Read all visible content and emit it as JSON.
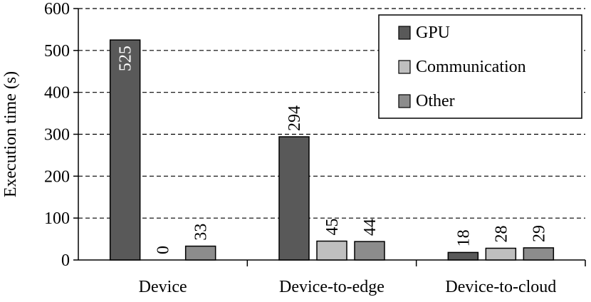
{
  "chart_data": {
    "type": "bar",
    "title": "",
    "xlabel": "",
    "ylabel": "Execution time (s)",
    "ylim": [
      0,
      600
    ],
    "yticks": [
      0,
      100,
      200,
      300,
      400,
      500,
      600
    ],
    "grid": "horizontal dashed",
    "legend_position": "top-right",
    "categories": [
      "Device",
      "Device-to-edge",
      "Device-to-cloud"
    ],
    "series": [
      {
        "name": "GPU",
        "color": "#595959",
        "values": [
          525,
          294,
          18
        ]
      },
      {
        "name": "Communication",
        "color": "#bfbfbf",
        "values": [
          0,
          45,
          28
        ]
      },
      {
        "name": "Other",
        "color": "#8c8c8c",
        "values": [
          33,
          44,
          29
        ]
      }
    ],
    "data_labels": [
      [
        "525",
        "294",
        "18"
      ],
      [
        "0",
        "45",
        "28"
      ],
      [
        "33",
        "44",
        "29"
      ]
    ]
  }
}
